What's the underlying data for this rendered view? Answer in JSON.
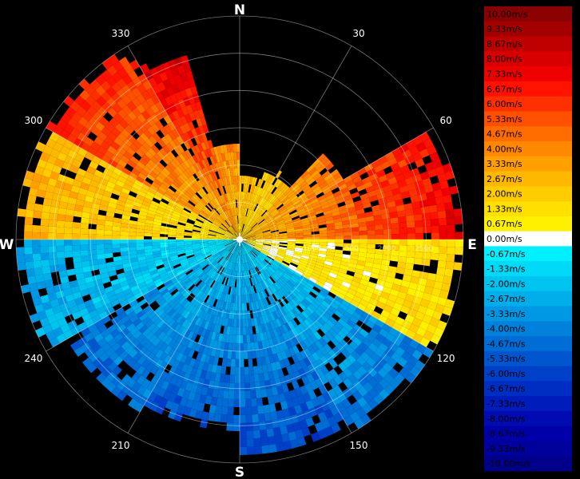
{
  "chart_data": {
    "type": "heatmap",
    "title": "",
    "compass": {
      "north": "N",
      "east": "E",
      "south": "S",
      "west": "W"
    },
    "bearing_labels": [
      {
        "angle": 30,
        "text": "30"
      },
      {
        "angle": 60,
        "text": "60"
      },
      {
        "angle": 120,
        "text": "120"
      },
      {
        "angle": 150,
        "text": "150"
      },
      {
        "angle": 210,
        "text": "210"
      },
      {
        "angle": 240,
        "text": "240"
      },
      {
        "angle": 300,
        "text": "300"
      },
      {
        "angle": 330,
        "text": "330"
      }
    ],
    "range_rings": [
      "500",
      "1000",
      "1500",
      "2000",
      "2500"
    ],
    "colorbar": {
      "unit": "m/s",
      "levels": [
        {
          "label": "10.00m/s",
          "color": "#8b0000"
        },
        {
          "label": "9.33m/s",
          "color": "#a50000"
        },
        {
          "label": "8.67m/s",
          "color": "#bf0000"
        },
        {
          "label": "8.00m/s",
          "color": "#d80000"
        },
        {
          "label": "7.33m/s",
          "color": "#ef0000"
        },
        {
          "label": "6.67m/s",
          "color": "#ff1200"
        },
        {
          "label": "6.00m/s",
          "color": "#ff3000"
        },
        {
          "label": "5.33m/s",
          "color": "#ff5000"
        },
        {
          "label": "4.67m/s",
          "color": "#ff6c00"
        },
        {
          "label": "4.00m/s",
          "color": "#ff8800"
        },
        {
          "label": "3.33m/s",
          "color": "#ffa000"
        },
        {
          "label": "2.67m/s",
          "color": "#ffb800"
        },
        {
          "label": "2.00m/s",
          "color": "#ffcc00"
        },
        {
          "label": "1.33m/s",
          "color": "#ffe000"
        },
        {
          "label": "0.67m/s",
          "color": "#fff000"
        },
        {
          "label": "0.00m/s",
          "color": "#ffffff"
        },
        {
          "label": "-0.67m/s",
          "color": "#00f0ff"
        },
        {
          "label": "-1.33m/s",
          "color": "#00daf8"
        },
        {
          "label": "-2.00m/s",
          "color": "#00c4f0"
        },
        {
          "label": "-2.67m/s",
          "color": "#00aeea"
        },
        {
          "label": "-3.33m/s",
          "color": "#0098e4"
        },
        {
          "label": "-4.00m/s",
          "color": "#0082dc"
        },
        {
          "label": "-4.67m/s",
          "color": "#006cd6"
        },
        {
          "label": "-5.33m/s",
          "color": "#0056cf"
        },
        {
          "label": "-6.00m/s",
          "color": "#0040c8"
        },
        {
          "label": "-6.67m/s",
          "color": "#002ec2"
        },
        {
          "label": "-7.33m/s",
          "color": "#001cba"
        },
        {
          "label": "-8.00m/s",
          "color": "#000cb2"
        },
        {
          "label": "-8.67m/s",
          "color": "#0000a8"
        },
        {
          "label": "-9.33m/s",
          "color": "#00009a"
        },
        {
          "label": "-10.00m/s",
          "color": "#00008b"
        }
      ]
    },
    "field_sectors": [
      {
        "from": 330,
        "to": 345,
        "value": 8.0,
        "reach": 0.9
      },
      {
        "from": 345,
        "to": 360,
        "value": 6.0,
        "reach": 0.45
      },
      {
        "from": 0,
        "to": 20,
        "value": 4.67,
        "reach": 0.3
      },
      {
        "from": 20,
        "to": 45,
        "value": 4.0,
        "reach": 0.35
      },
      {
        "from": 45,
        "to": 60,
        "value": 6.0,
        "reach": 0.55
      },
      {
        "from": 60,
        "to": 90,
        "value": 6.67,
        "reach": 1.0
      },
      {
        "from": 90,
        "to": 120,
        "value": 1.33,
        "reach": 1.0
      },
      {
        "from": 120,
        "to": 150,
        "value": -4.0,
        "reach": 1.0
      },
      {
        "from": 150,
        "to": 180,
        "value": -5.33,
        "reach": 0.98
      },
      {
        "from": 180,
        "to": 210,
        "value": -5.33,
        "reach": 0.85
      },
      {
        "from": 210,
        "to": 240,
        "value": -4.67,
        "reach": 0.9
      },
      {
        "from": 240,
        "to": 270,
        "value": -2.67,
        "reach": 1.0
      },
      {
        "from": 270,
        "to": 300,
        "value": 2.67,
        "reach": 1.0
      },
      {
        "from": 300,
        "to": 330,
        "value": 6.0,
        "reach": 1.0
      }
    ]
  }
}
